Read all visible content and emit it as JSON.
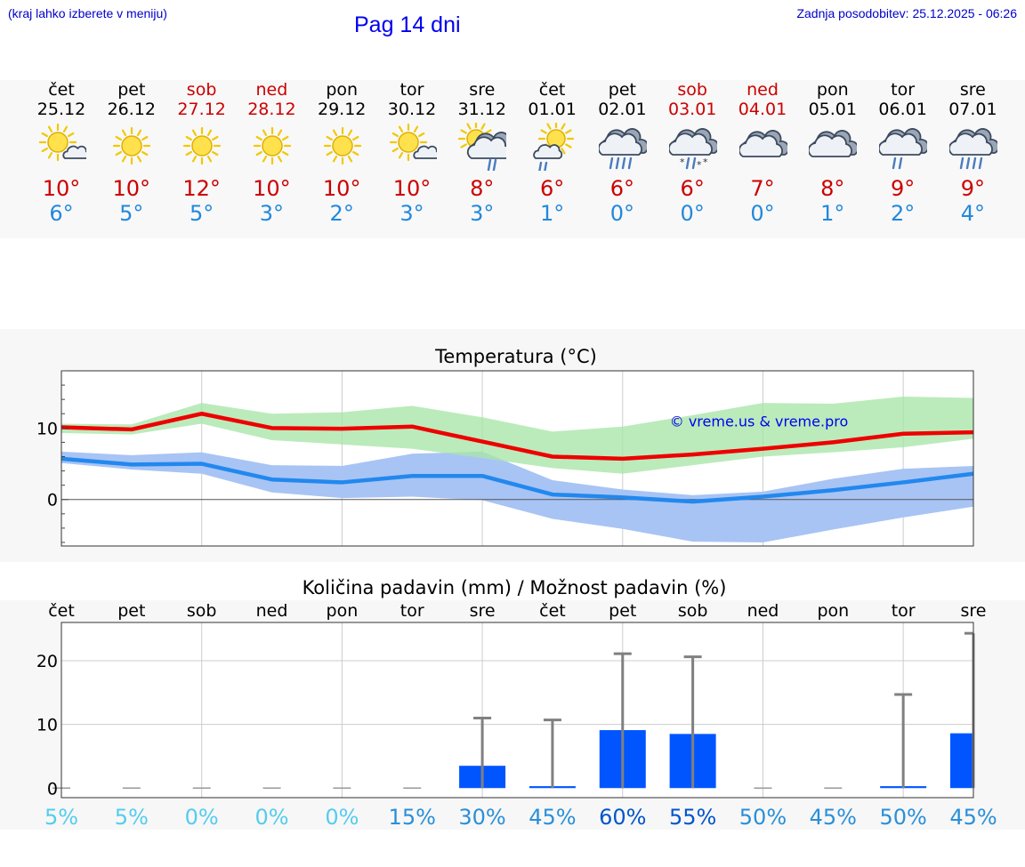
{
  "header": {
    "menu_hint": "(kraj lahko izberete v meniju)",
    "title": "Pag 14 dni",
    "updated": "Zadnja posodobitev: 25.12.2025 - 06:26"
  },
  "days": [
    {
      "name": "čet",
      "date": "25.12",
      "weekend": false,
      "icon": "sun-cloud-icon",
      "tmax": "10°",
      "tmin": "6°"
    },
    {
      "name": "pet",
      "date": "26.12",
      "weekend": false,
      "icon": "sun-icon",
      "tmax": "10°",
      "tmin": "5°"
    },
    {
      "name": "sob",
      "date": "27.12",
      "weekend": true,
      "icon": "sun-icon",
      "tmax": "12°",
      "tmin": "5°"
    },
    {
      "name": "ned",
      "date": "28.12",
      "weekend": true,
      "icon": "sun-icon",
      "tmax": "10°",
      "tmin": "3°"
    },
    {
      "name": "pon",
      "date": "29.12",
      "weekend": false,
      "icon": "sun-icon",
      "tmax": "10°",
      "tmin": "2°"
    },
    {
      "name": "tor",
      "date": "30.12",
      "weekend": false,
      "icon": "sun-cloud-icon",
      "tmax": "10°",
      "tmin": "3°"
    },
    {
      "name": "sre",
      "date": "31.12",
      "weekend": false,
      "icon": "sun-rain-cloud-icon",
      "tmax": "8°",
      "tmin": "3°"
    },
    {
      "name": "čet",
      "date": "01.01",
      "weekend": false,
      "icon": "rain-cloud-sun-icon",
      "tmax": "6°",
      "tmin": "1°"
    },
    {
      "name": "pet",
      "date": "02.01",
      "weekend": false,
      "icon": "heavy-rain-cloud-icon",
      "tmax": "6°",
      "tmin": "0°"
    },
    {
      "name": "sob",
      "date": "03.01",
      "weekend": true,
      "icon": "sleet-cloud-icon",
      "tmax": "6°",
      "tmin": "0°"
    },
    {
      "name": "ned",
      "date": "04.01",
      "weekend": true,
      "icon": "cloud-icon",
      "tmax": "7°",
      "tmin": "0°"
    },
    {
      "name": "pon",
      "date": "05.01",
      "weekend": false,
      "icon": "cloud-icon",
      "tmax": "8°",
      "tmin": "1°"
    },
    {
      "name": "tor",
      "date": "06.01",
      "weekend": false,
      "icon": "light-rain-cloud-icon",
      "tmax": "9°",
      "tmin": "2°"
    },
    {
      "name": "sre",
      "date": "07.01",
      "weekend": false,
      "icon": "heavy-rain-cloud-icon",
      "tmax": "9°",
      "tmin": "4°"
    }
  ],
  "colors": {
    "max_line": "#ee0000",
    "min_line": "#2288ee",
    "max_band": "#a8e6a8",
    "min_band": "#a8c4f4",
    "overlap_band": "#80c8a8",
    "precip_bar": "#0055ff",
    "whisker": "#808080"
  },
  "chart_data": [
    {
      "type": "line",
      "title": "Temperatura (°C)",
      "ylim": [
        -6.5,
        18
      ],
      "yticks": [
        0,
        10
      ],
      "x": [
        0,
        1,
        2,
        3,
        4,
        5,
        6,
        7,
        8,
        9,
        10,
        11,
        12,
        13
      ],
      "series": [
        {
          "name": "max",
          "values": [
            10.1,
            9.8,
            12.0,
            10.0,
            9.9,
            10.2,
            8.1,
            6.0,
            5.7,
            6.3,
            7.1,
            8.0,
            9.2,
            9.4
          ]
        },
        {
          "name": "min",
          "values": [
            5.7,
            4.9,
            5.0,
            2.8,
            2.4,
            3.3,
            3.3,
            0.7,
            0.3,
            -0.3,
            0.4,
            1.3,
            2.4,
            3.6
          ]
        }
      ],
      "bands": [
        {
          "name": "max_range",
          "low": [
            9.3,
            9.1,
            10.6,
            8.3,
            7.7,
            7.1,
            5.8,
            4.4,
            3.6,
            4.8,
            6.0,
            6.6,
            7.3,
            8.5
          ],
          "high": [
            10.6,
            10.5,
            13.5,
            12.0,
            12.2,
            13.1,
            11.5,
            9.5,
            10.2,
            11.8,
            13.5,
            13.4,
            14.4,
            14.2
          ]
        },
        {
          "name": "min_range",
          "low": [
            5.1,
            4.2,
            3.6,
            1.0,
            0.2,
            0.4,
            -0.1,
            -2.7,
            -4.1,
            -5.9,
            -6.0,
            -4.2,
            -2.5,
            -1.0
          ],
          "high": [
            6.7,
            6.2,
            6.6,
            4.8,
            4.7,
            6.4,
            6.7,
            2.7,
            1.4,
            0.6,
            1.1,
            2.9,
            4.3,
            4.7
          ]
        }
      ],
      "annotation": "© vreme.us & vreme.pro"
    },
    {
      "type": "bar",
      "title": "Količina padavin (mm) / Možnost padavin (%)",
      "categories": [
        "čet",
        "pet",
        "sob",
        "ned",
        "pon",
        "tor",
        "sre",
        "čet",
        "pet",
        "sob",
        "ned",
        "pon",
        "tor",
        "sre"
      ],
      "ylim": [
        -1.5,
        26
      ],
      "yticks": [
        0,
        10,
        20
      ],
      "values": [
        0,
        0,
        0,
        0,
        0,
        0,
        3.5,
        0.3,
        9.1,
        8.5,
        0,
        0,
        0.3,
        8.6
      ],
      "whisker_max": [
        0,
        0,
        0,
        0,
        0,
        0,
        11.0,
        10.7,
        21.1,
        20.6,
        0,
        0,
        14.7,
        24.3
      ],
      "chance": [
        "5%",
        "5%",
        "0%",
        "0%",
        "0%",
        "15%",
        "30%",
        "45%",
        "60%",
        "55%",
        "50%",
        "45%",
        "50%",
        "45%"
      ],
      "chance_values": [
        5,
        5,
        0,
        0,
        0,
        15,
        30,
        45,
        60,
        55,
        50,
        45,
        50,
        45
      ]
    }
  ]
}
